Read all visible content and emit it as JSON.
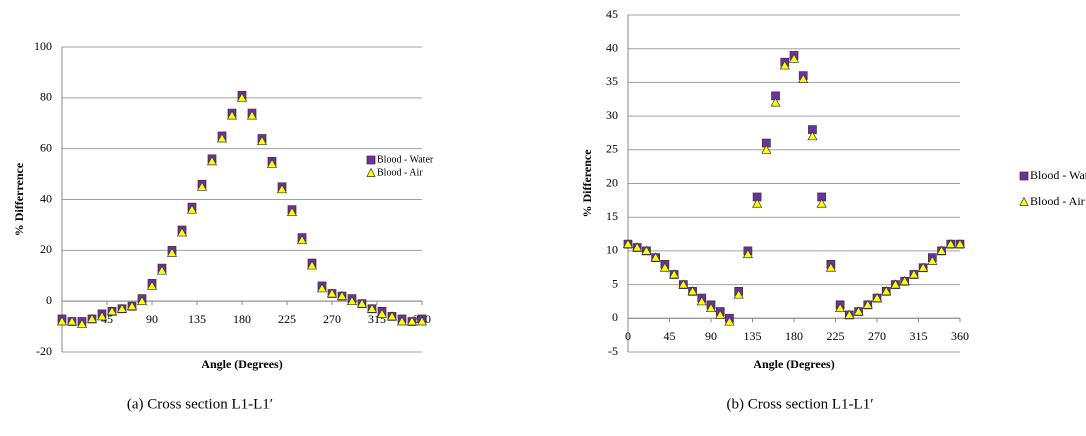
{
  "chart_data": [
    {
      "type": "scatter",
      "x_label": "Angle (Degrees)",
      "y_label": "% Differrence",
      "caption": "(a) Cross section L1-L1′",
      "x": [
        0,
        10,
        20,
        30,
        40,
        50,
        60,
        70,
        80,
        90,
        100,
        110,
        120,
        130,
        140,
        150,
        160,
        170,
        180,
        190,
        200,
        210,
        220,
        230,
        240,
        250,
        260,
        270,
        280,
        290,
        300,
        310,
        320,
        330,
        340,
        350,
        360
      ],
      "series": [
        {
          "name": "Blood - Water",
          "color": "#7030a0",
          "marker": "square",
          "values": [
            -7,
            -8,
            -8,
            -7,
            -5,
            -4,
            -3,
            -2,
            1,
            7,
            13,
            20,
            28,
            37,
            46,
            56,
            65,
            74,
            81,
            74,
            64,
            55,
            45,
            36,
            25,
            15,
            6,
            3,
            2,
            1,
            -1,
            -3,
            -4,
            -6,
            -7,
            -8,
            -7
          ]
        },
        {
          "name": "Blood - Air",
          "color": "#ffff00",
          "marker": "triangle",
          "values": [
            -8,
            -8,
            -9,
            -7,
            -6,
            -4,
            -3,
            -2,
            0,
            6,
            12,
            19,
            27,
            36,
            45,
            55,
            64,
            73,
            80,
            73,
            63,
            54,
            44,
            35,
            24,
            14,
            5,
            3,
            2,
            0,
            -1,
            -3,
            -5,
            -6,
            -8,
            -8,
            -8
          ]
        }
      ],
      "xlim": [
        0,
        360
      ],
      "xticks": [
        45,
        90,
        135,
        180,
        225,
        270,
        315,
        360
      ],
      "ylim": [
        -20,
        100
      ],
      "yticks": [
        -20,
        0,
        20,
        40,
        60,
        80,
        100
      ],
      "grid": true,
      "legend": "right"
    },
    {
      "type": "scatter",
      "x_label": "Angle (Degrees)",
      "y_label": "% Difference",
      "caption": "(b) Cross section L1-L1′",
      "x": [
        0,
        10,
        20,
        30,
        40,
        50,
        60,
        70,
        80,
        90,
        100,
        110,
        120,
        130,
        140,
        150,
        160,
        170,
        180,
        190,
        200,
        210,
        220,
        230,
        240,
        250,
        260,
        270,
        280,
        290,
        300,
        310,
        320,
        330,
        340,
        350,
        360
      ],
      "series": [
        {
          "name": "Blood - Water",
          "color": "#7030a0",
          "marker": "square",
          "values": [
            11,
            10.5,
            10,
            9,
            8,
            6.5,
            5,
            4,
            3,
            2,
            1,
            0,
            4,
            10,
            18,
            26,
            33,
            38,
            39,
            36,
            28,
            18,
            8,
            2,
            0.5,
            1,
            2,
            3,
            4,
            5,
            5.5,
            6.5,
            7.5,
            9,
            10,
            11,
            11
          ]
        },
        {
          "name": "Blood - Air",
          "color": "#ffff00",
          "marker": "triangle",
          "values": [
            11,
            10.5,
            10,
            9,
            7.5,
            6.5,
            5,
            4,
            2.5,
            1.5,
            0.5,
            -0.5,
            3.5,
            9.5,
            17,
            25,
            32,
            37.5,
            38.5,
            35.5,
            27,
            17,
            7.5,
            1.5,
            0.5,
            1,
            2,
            3,
            4,
            5,
            5.5,
            6.5,
            7.5,
            8.5,
            10,
            11,
            11
          ]
        }
      ],
      "xlim": [
        0,
        360
      ],
      "xticks": [
        0,
        45,
        90,
        135,
        180,
        225,
        270,
        315,
        360
      ],
      "ylim": [
        -5,
        45
      ],
      "yticks": [
        -5,
        0,
        5,
        10,
        15,
        20,
        25,
        30,
        35,
        40,
        45
      ],
      "grid": true,
      "legend": "right"
    }
  ]
}
